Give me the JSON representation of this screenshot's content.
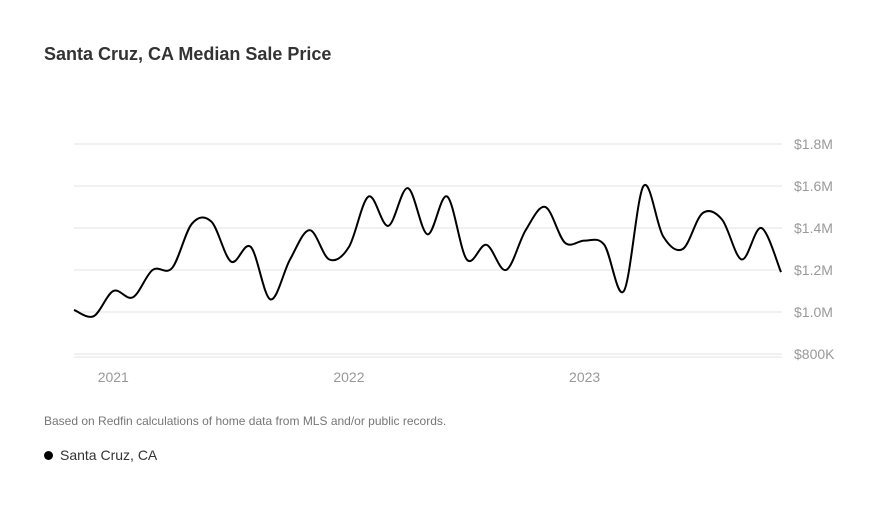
{
  "title": "Santa Cruz, CA Median Sale Price",
  "note": "Based on Redfin calculations of home data from MLS and/or public records.",
  "colors": {
    "line": "#000000",
    "grid": "#e3e3e3",
    "tick_text": "#999999"
  },
  "chart_data": {
    "type": "line",
    "title": "Santa Cruz, CA Median Sale Price",
    "xlabel": "",
    "ylabel": "",
    "x_start": "2020-11",
    "x_end": "2023-11",
    "x_tick_labels": [
      "2021",
      "2022",
      "2023"
    ],
    "x_tick_months": [
      2,
      14,
      26
    ],
    "y_tick_labels": [
      "$1.8M",
      "$1.6M",
      "$1.4M",
      "$1.2M",
      "$1.0M",
      "$800K"
    ],
    "y_ticks": [
      1.8,
      1.6,
      1.4,
      1.2,
      1.0,
      0.8
    ],
    "ylim": [
      0.8,
      1.8
    ],
    "y_unit": "millions USD",
    "grid": true,
    "legend_position": "bottom-left",
    "series": [
      {
        "name": "Santa Cruz, CA",
        "values": [
          1.01,
          0.98,
          1.1,
          1.07,
          1.2,
          1.21,
          1.42,
          1.43,
          1.24,
          1.31,
          1.06,
          1.25,
          1.39,
          1.25,
          1.31,
          1.55,
          1.41,
          1.59,
          1.37,
          1.55,
          1.25,
          1.32,
          1.2,
          1.39,
          1.5,
          1.33,
          1.34,
          1.32,
          1.1,
          1.6,
          1.36,
          1.3,
          1.47,
          1.44,
          1.25,
          1.4,
          1.19
        ]
      }
    ]
  }
}
